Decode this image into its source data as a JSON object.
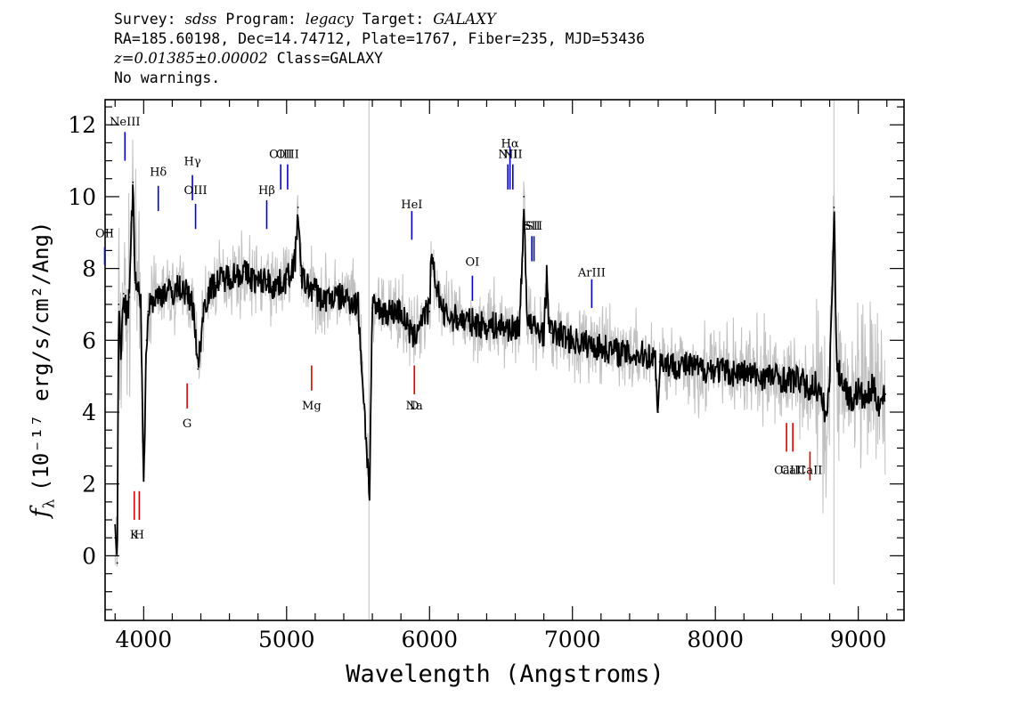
{
  "header": {
    "line1": {
      "survey_label": "Survey: ",
      "survey": "sdss",
      "program_label": " Program: ",
      "program": "legacy",
      "target_label": " Target: ",
      "target": "GALAXY"
    },
    "line2": "RA=185.60198, Dec=14.74712, Plate=1767, Fiber=235, MJD=53436",
    "line3": {
      "z": "z=0.01385±0.00002",
      "class": " Class=GALAXY"
    },
    "line4": "No warnings."
  },
  "chart_data": {
    "type": "line",
    "xlabel": "Wavelength (Angstroms)",
    "ylabel_symbol": "f",
    "ylabel_sub": "λ",
    "ylabel": "(10⁻¹⁷ erg/s/cm²/Ang)",
    "xlim": [
      3730,
      9320
    ],
    "ylim": [
      -1.8,
      12.7
    ],
    "x_ticks": [
      4000,
      5000,
      6000,
      7000,
      8000,
      9000
    ],
    "y_ticks": [
      0,
      2,
      4,
      6,
      8,
      10,
      12
    ],
    "series": [
      {
        "role": "data",
        "color": "#c0c0c0"
      },
      {
        "role": "model",
        "color": "#000000",
        "x": [
          3800,
          3815,
          3825,
          3840,
          3860,
          3880,
          3900,
          3925,
          3940,
          3960,
          3980,
          4000,
          4020,
          4030,
          4050,
          4100,
          4150,
          4200,
          4250,
          4300,
          4350,
          4380,
          4420,
          4450,
          4500,
          4600,
          4700,
          4800,
          4860,
          4900,
          4960,
          5000,
          5060,
          5080,
          5100,
          5150,
          5200,
          5250,
          5300,
          5400,
          5500,
          5580,
          5600,
          5700,
          5800,
          5890,
          5920,
          5950,
          6000,
          6010,
          6100,
          6200,
          6300,
          6400,
          6500,
          6600,
          6630,
          6650,
          6660,
          6680,
          6700,
          6750,
          6800,
          6820,
          6830,
          6850,
          6900,
          7000,
          7100,
          7200,
          7300,
          7400,
          7500,
          7580,
          7600,
          7610,
          7650,
          7700,
          7800,
          7900,
          8000,
          8100,
          8200,
          8300,
          8400,
          8500,
          8600,
          8650,
          8700,
          8780,
          8800,
          8830,
          8850,
          8900,
          8950,
          9000,
          9050,
          9100,
          9150,
          9190
        ],
        "y": [
          0.5,
          -0.2,
          7.0,
          5.5,
          7.3,
          6.6,
          7.2,
          10.4,
          7.6,
          7.4,
          6.9,
          2.2,
          6.0,
          6.8,
          7.1,
          7.2,
          7.4,
          7.3,
          7.5,
          7.3,
          6.9,
          5.2,
          6.9,
          7.3,
          7.6,
          7.8,
          7.9,
          7.6,
          7.7,
          7.5,
          7.6,
          7.7,
          8.2,
          9.7,
          7.8,
          7.5,
          7.4,
          7.1,
          7.2,
          7.2,
          7.0,
          1.7,
          6.9,
          6.8,
          6.8,
          6.0,
          6.4,
          6.7,
          6.8,
          8.2,
          6.7,
          6.6,
          6.5,
          6.4,
          6.4,
          6.3,
          6.5,
          8.2,
          10.0,
          6.9,
          6.4,
          6.3,
          6.2,
          7.7,
          6.9,
          6.2,
          6.2,
          6.0,
          5.9,
          5.8,
          5.7,
          5.6,
          5.6,
          5.5,
          4.0,
          5.4,
          5.4,
          5.3,
          5.3,
          5.2,
          5.2,
          5.1,
          5.1,
          5.0,
          5.0,
          4.9,
          4.9,
          4.6,
          4.8,
          3.9,
          4.9,
          9.7,
          5.2,
          4.8,
          4.3,
          4.6,
          4.3,
          4.7,
          4.2,
          4.5
        ]
      }
    ],
    "emission_lines": [
      {
        "name": "OII",
        "x": 3727,
        "y0": 8.1,
        "y1": 8.6,
        "label_y": 9.0
      },
      {
        "name": "NeIII",
        "x": 3869,
        "y0": 11.0,
        "y1": 11.8,
        "label_y": 12.1
      },
      {
        "name": "Hδ",
        "x": 4102,
        "y0": 9.6,
        "y1": 10.3,
        "label_y": 10.7
      },
      {
        "name": "Hγ",
        "x": 4341,
        "y0": 9.9,
        "y1": 10.6,
        "label_y": 11.0
      },
      {
        "name": "OIII",
        "x": 4363,
        "y0": 9.1,
        "y1": 9.8,
        "label_y": 10.2
      },
      {
        "name": "Hβ",
        "x": 4861,
        "y0": 9.1,
        "y1": 9.9,
        "label_y": 10.2
      },
      {
        "name": "OIII",
        "x": 4959,
        "y0": 10.2,
        "y1": 10.9,
        "label_y": 11.2
      },
      {
        "name": "OIII",
        "x": 5007,
        "y0": 10.2,
        "y1": 10.9,
        "label_y": 11.2
      },
      {
        "name": "HeI",
        "x": 5876,
        "y0": 8.8,
        "y1": 9.6,
        "label_y": 9.8
      },
      {
        "name": "OI",
        "x": 6300,
        "y0": 7.1,
        "y1": 7.8,
        "label_y": 8.2
      },
      {
        "name": "NII",
        "x": 6548,
        "y0": 10.2,
        "y1": 10.9,
        "label_y": 11.2
      },
      {
        "name": "Hα",
        "x": 6563,
        "y0": 10.2,
        "y1": 11.4,
        "label_y": 11.5
      },
      {
        "name": "NII",
        "x": 6583,
        "y0": 10.2,
        "y1": 10.9,
        "label_y": 11.2
      },
      {
        "name": "SII",
        "x": 6716,
        "y0": 8.2,
        "y1": 8.9,
        "label_y": 9.2
      },
      {
        "name": "SII",
        "x": 6731,
        "y0": 8.2,
        "y1": 8.9,
        "label_y": 9.2
      },
      {
        "name": "ArIII",
        "x": 7135,
        "y0": 6.9,
        "y1": 7.7,
        "label_y": 7.9
      }
    ],
    "absorption_lines": [
      {
        "name": "K",
        "x": 3934,
        "y0": 1.0,
        "y1": 1.8,
        "label_y": 0.6
      },
      {
        "name": "H",
        "x": 3969,
        "y0": 1.0,
        "y1": 1.8,
        "label_y": 0.6
      },
      {
        "name": "G",
        "x": 4304,
        "y0": 4.1,
        "y1": 4.8,
        "label_y": 3.7
      },
      {
        "name": "Mg",
        "x": 5175,
        "y0": 4.6,
        "y1": 5.3,
        "label_y": 4.2
      },
      {
        "name": "Na",
        "x": 5894,
        "y0": 4.5,
        "y1": 5.3,
        "label_y": 4.2
      },
      {
        "name": "D",
        "x": 5894,
        "y0": 4.5,
        "y1": 5.3,
        "label_y": 4.2
      },
      {
        "name": "CaII",
        "x": 8498,
        "y0": 2.9,
        "y1": 3.7,
        "label_y": 2.4
      },
      {
        "name": "CaII",
        "x": 8542,
        "y0": 2.9,
        "y1": 3.7,
        "label_y": 2.4
      },
      {
        "name": "CaII",
        "x": 8662,
        "y0": 2.1,
        "y1": 2.9,
        "label_y": 2.4
      }
    ],
    "emission_color": "#0000cc",
    "absorption_color": "#dd0000"
  }
}
